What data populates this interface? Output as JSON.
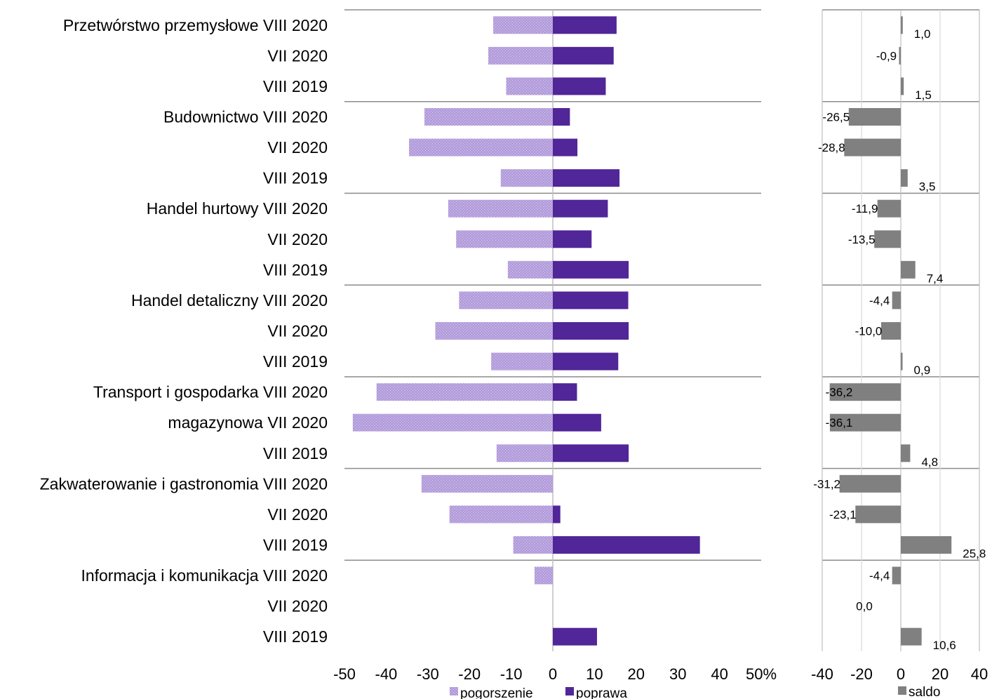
{
  "chart_data": [
    {
      "type": "bar",
      "orientation": "horizontal",
      "categories": [
        "Przetwórstwo przemysłowe VIII 2020",
        "VII 2020",
        "VIII 2019",
        "Budownictwo VIII 2020",
        "VII 2020",
        "VIII 2019",
        "Handel hurtowy VIII 2020",
        "VII 2020",
        "VIII 2019",
        "Handel detaliczny VIII 2020",
        "VII 2020",
        "VIII 2019",
        "Transport i gospodarka VIII 2020",
        "magazynowa  VII 2020",
        "VIII 2019",
        "Zakwaterowanie i gastronomia VIII 2020",
        "VII 2020",
        "VIII 2019",
        "Informacja i komunikacja VIII 2020",
        "VII 2020",
        "VIII 2019"
      ],
      "series": [
        {
          "name": "pogorszenie",
          "color": "#b39ddb",
          "values": [
            -14.3,
            -15.5,
            -11.2,
            -30.8,
            -34.5,
            -12.5,
            -25.1,
            -23.2,
            -10.8,
            -22.5,
            -28.2,
            -14.8,
            -42.3,
            -48.0,
            -13.5,
            -31.5,
            -24.8,
            -9.5,
            -4.4,
            0.0,
            0.0
          ]
        },
        {
          "name": "poprawa",
          "color": "#512698",
          "values": [
            15.3,
            14.6,
            12.7,
            4.1,
            5.9,
            16.0,
            13.2,
            9.3,
            18.2,
            18.1,
            18.2,
            15.7,
            5.8,
            11.6,
            18.2,
            0.0,
            1.8,
            35.3,
            0.0,
            0.0,
            10.6
          ]
        }
      ],
      "xlim": [
        -50,
        50
      ],
      "xticks": [
        -50,
        -40,
        -30,
        -20,
        -10,
        0,
        10,
        20,
        30,
        40,
        50
      ],
      "xtick_labels": [
        "-50",
        "-40",
        "-30",
        "-20",
        "-10",
        "0",
        "10",
        "20",
        "30",
        "40",
        "50%"
      ],
      "legend_position": "bottom",
      "grid": false
    },
    {
      "type": "bar",
      "orientation": "horizontal",
      "series": [
        {
          "name": "saldo",
          "color": "#808080",
          "values": [
            1.0,
            -0.9,
            1.5,
            -26.5,
            -28.8,
            3.5,
            -11.9,
            -13.5,
            7.4,
            -4.4,
            -10.0,
            0.9,
            -36.2,
            -36.1,
            4.8,
            -31.2,
            -23.1,
            25.8,
            -4.4,
            0.0,
            10.6
          ],
          "labels": [
            "1,0",
            "-0,9",
            "1,5",
            "-26,5",
            "-28,8",
            "3,5",
            "-11,9",
            "-13,5",
            "7,4",
            "-4,4",
            "-10,0",
            "0,9",
            "-36,2",
            "-36,1",
            "4,8",
            "-31,2",
            "-23,1",
            "25,8",
            "-4,4",
            "0,0",
            "10,6"
          ]
        }
      ],
      "xlim": [
        -40,
        40
      ],
      "xticks": [
        -40,
        -20,
        0,
        20,
        40
      ],
      "xtick_labels": [
        "-40",
        "-20",
        "0",
        "20",
        "40"
      ],
      "gridlines_x": [
        -20,
        0,
        20
      ],
      "legend_position": "bottom",
      "grid": true
    }
  ]
}
